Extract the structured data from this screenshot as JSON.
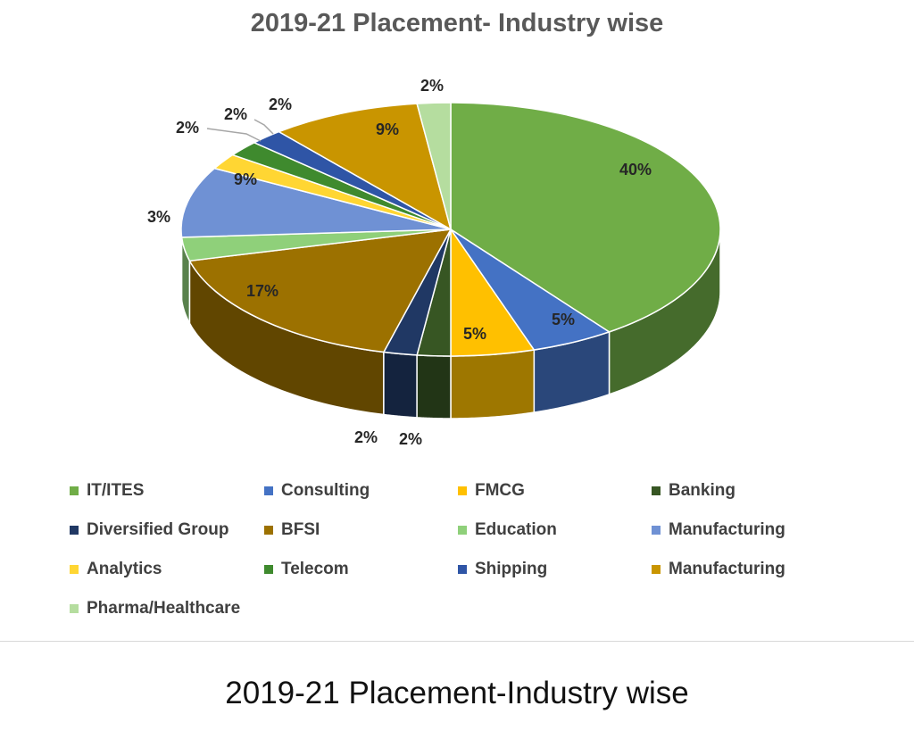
{
  "chart_data": {
    "type": "pie",
    "title": "2019-21 Placement- Industry wise",
    "slices": [
      {
        "name": "IT/ITES",
        "value": 40,
        "label": "40%",
        "color": "#70ad47"
      },
      {
        "name": "Consulting",
        "value": 5,
        "label": "5%",
        "color": "#4472c4"
      },
      {
        "name": "FMCG",
        "value": 5,
        "label": "5%",
        "color": "#ffc000"
      },
      {
        "name": "Banking",
        "value": 2,
        "label": "2%",
        "color": "#375623"
      },
      {
        "name": "Diversified Group",
        "value": 2,
        "label": "2%",
        "color": "#203864"
      },
      {
        "name": "BFSI",
        "value": 17,
        "label": "17%",
        "color": "#9c7100"
      },
      {
        "name": "Education",
        "value": 3,
        "label": "3%",
        "color": "#8fd07a"
      },
      {
        "name": "Manufacturing",
        "value": 9,
        "label": "9%",
        "color": "#6f91d4"
      },
      {
        "name": "Analytics",
        "value": 2,
        "label": "2%",
        "color": "#ffd633"
      },
      {
        "name": "Telecom",
        "value": 2,
        "label": "2%",
        "color": "#3f8a2e"
      },
      {
        "name": "Shipping",
        "value": 2,
        "label": "2%",
        "color": "#2f55a6"
      },
      {
        "name": "Manufacturing",
        "value": 9,
        "label": "9%",
        "color": "#c99500"
      },
      {
        "name": "Pharma/Healthcare",
        "value": 2,
        "label": "2%",
        "color": "#b5dd9f"
      }
    ],
    "legend_position": "bottom"
  },
  "caption": "2019-21 Placement-Industry wise"
}
